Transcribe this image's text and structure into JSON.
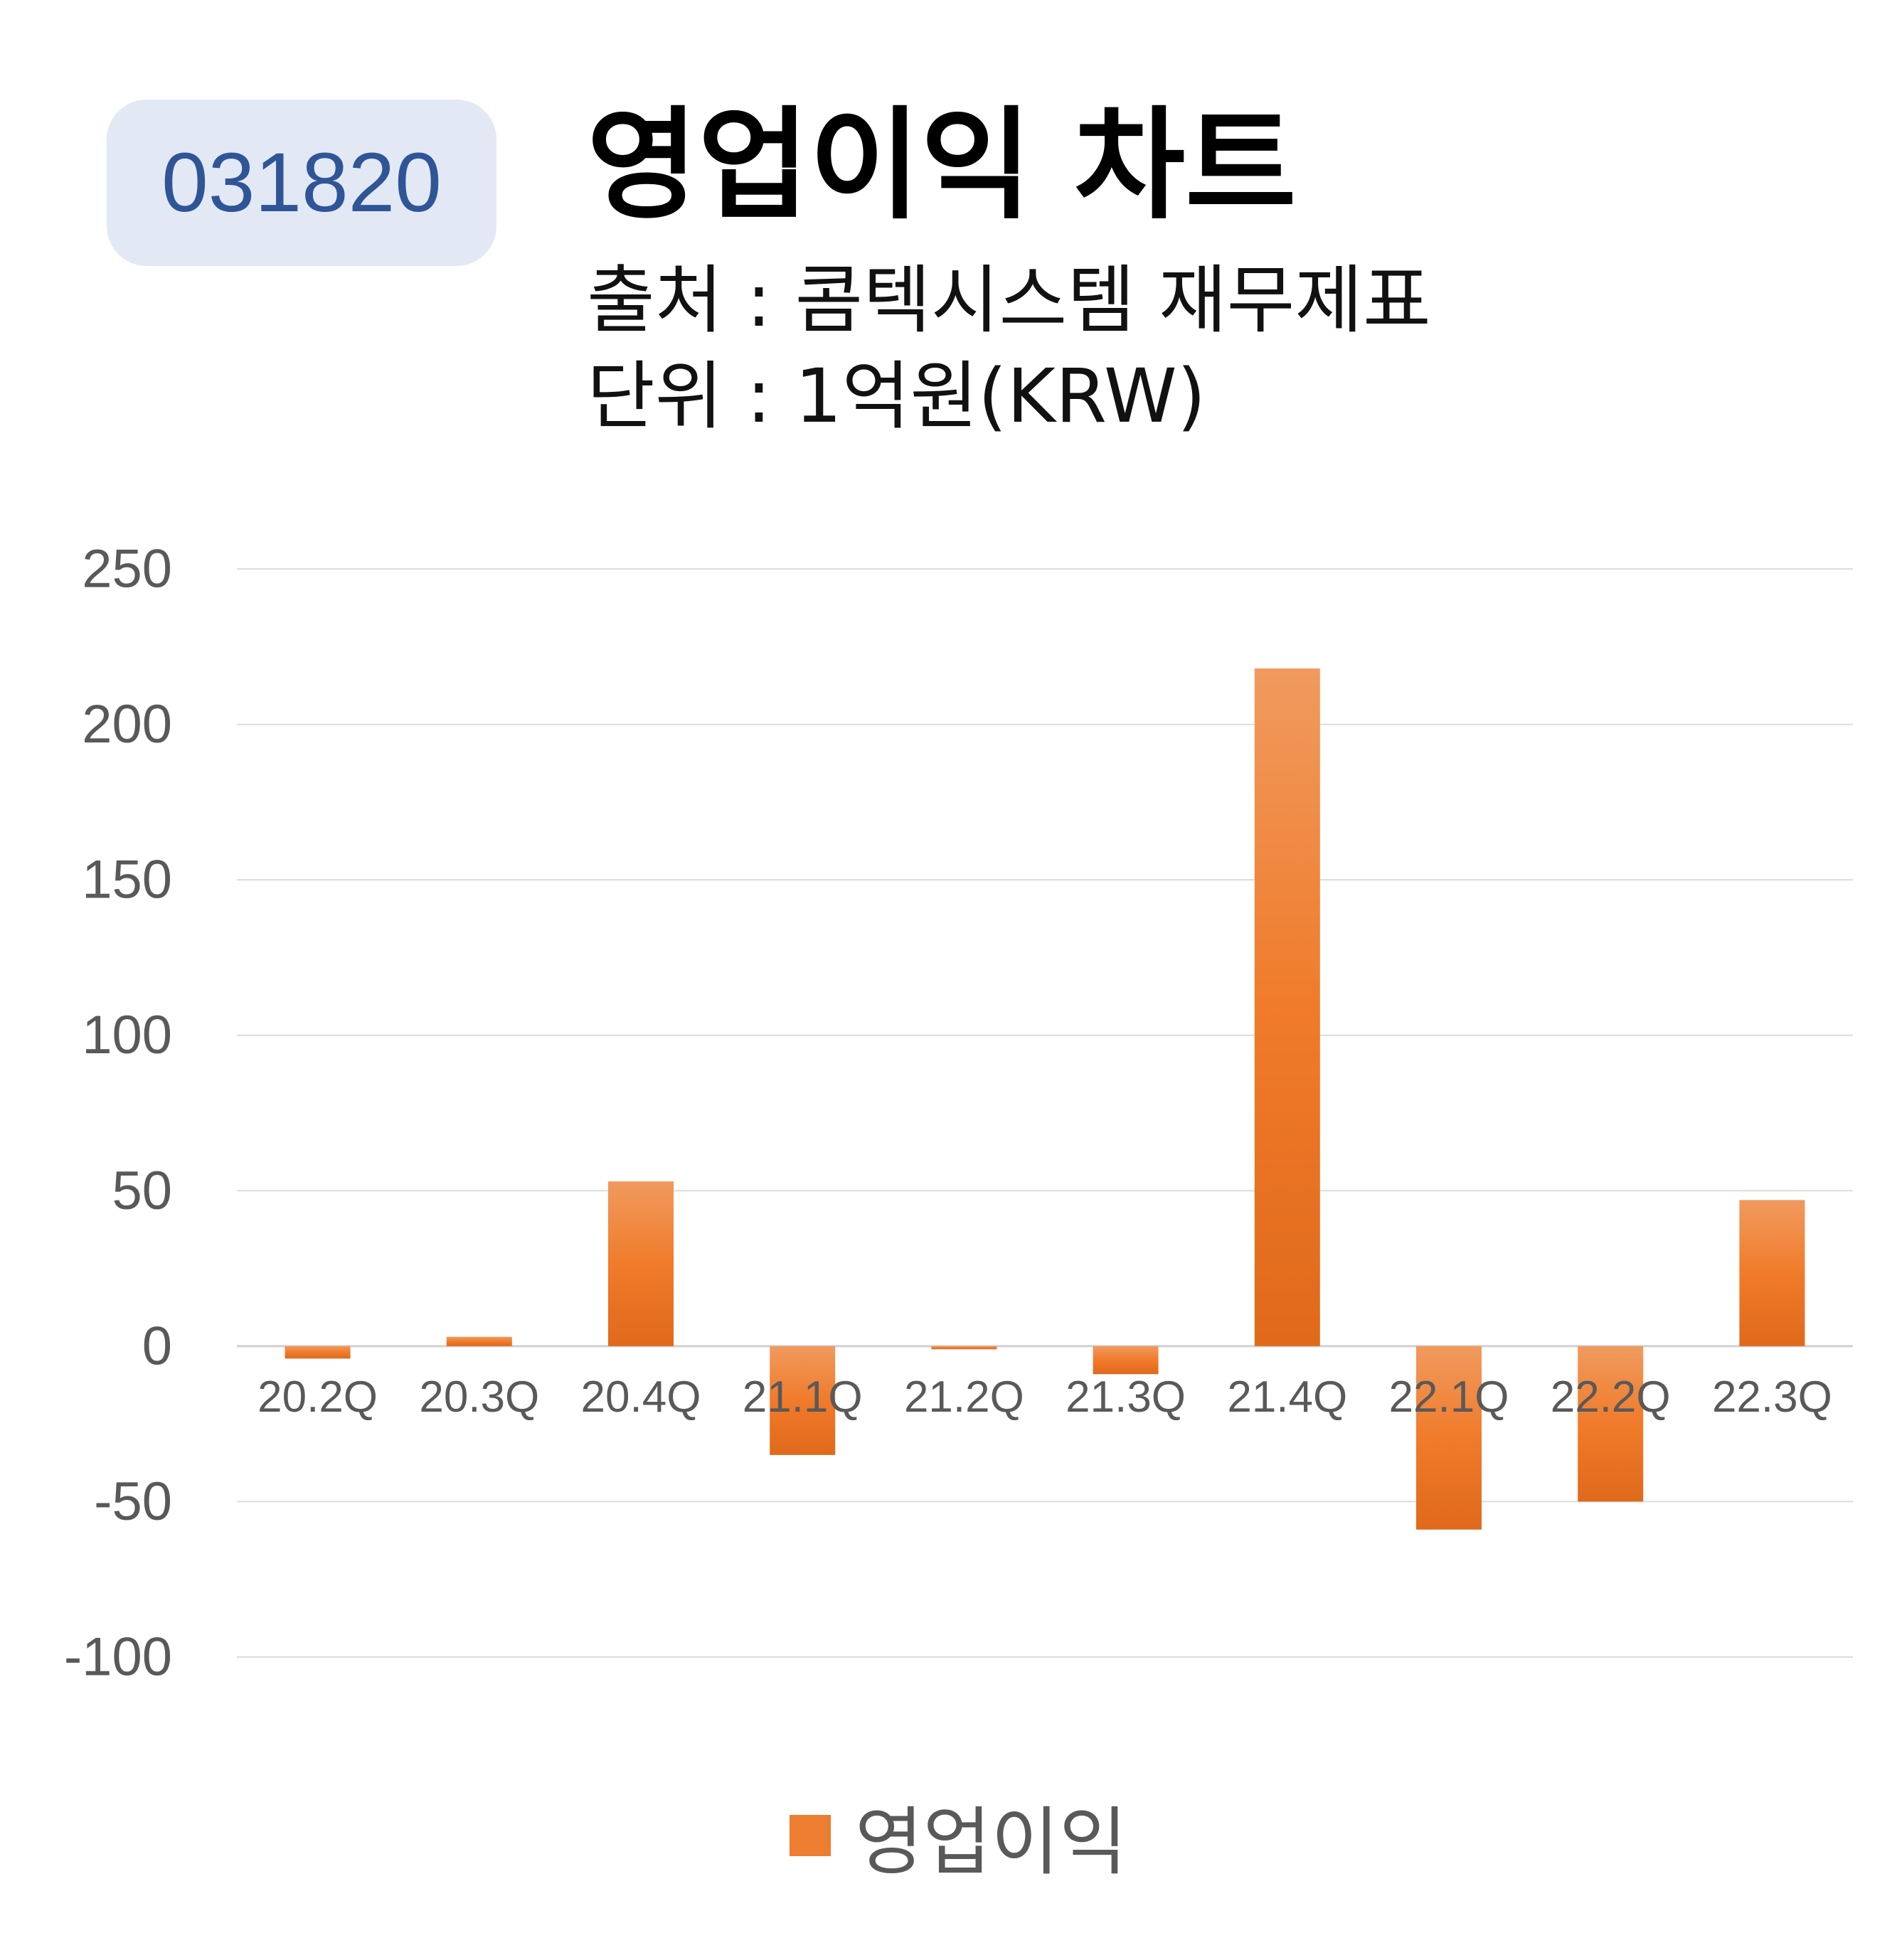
{
  "header": {
    "code": "031820",
    "title": "영업이익 차트",
    "source": "출처 : 콤텍시스템 재무제표",
    "unit": "단위 : 1억원(KRW)"
  },
  "colors": {
    "bar": "#ed7d31",
    "badge_bg": "#e2e9f5",
    "badge_text": "#2f5597"
  },
  "chart_data": {
    "type": "bar",
    "categories": [
      "20.2Q",
      "20.3Q",
      "20.4Q",
      "21.1Q",
      "21.2Q",
      "21.3Q",
      "21.4Q",
      "22.1Q",
      "22.2Q",
      "22.3Q"
    ],
    "series": [
      {
        "name": "영업이익",
        "values": [
          -4,
          3,
          53,
          -35,
          -1,
          -9,
          218,
          -59,
          -50,
          47
        ]
      }
    ],
    "ylim": [
      -100,
      250
    ],
    "yticks": [
      250,
      200,
      150,
      100,
      50,
      0,
      -50,
      -100
    ],
    "grid": true,
    "legend": "bottom"
  }
}
